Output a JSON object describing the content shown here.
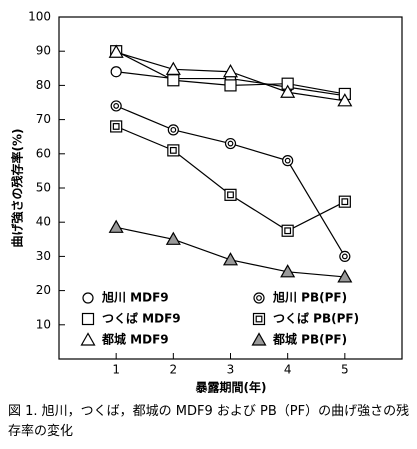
{
  "chart_data": {
    "type": "line",
    "y_label": "曲げ強さの残存率(%)",
    "x_label": "暴露期間(年)",
    "caption": "図 1. 旭川，つくば，都城の MDF9 および PB（PF）の曲げ強さの残存率の変化",
    "x": [
      1,
      2,
      3,
      4,
      5
    ],
    "xlim": [
      0,
      6
    ],
    "xticks": [
      1,
      2,
      3,
      4,
      5
    ],
    "ylim": [
      0,
      100
    ],
    "yticks": [
      10,
      20,
      30,
      40,
      50,
      60,
      70,
      80,
      90,
      100
    ],
    "legend": "bottom",
    "series": [
      {
        "name": "旭川 MDF9",
        "color": "#000000",
        "marker": "circle",
        "values": [
          84,
          82,
          82,
          79.5,
          77
        ]
      },
      {
        "name": "つくば MDF9",
        "color": "#000000",
        "marker": "square",
        "values": [
          90,
          81.5,
          80,
          80.5,
          77.5
        ]
      },
      {
        "name": "都城 MDF9",
        "color": "#000000",
        "marker": "triangle",
        "values": [
          89.7,
          84.7,
          84,
          78,
          75.5
        ]
      },
      {
        "name": "旭川 PB(PF)",
        "color": "#000000",
        "marker": "double-circle",
        "values": [
          74,
          67,
          63,
          58,
          30
        ]
      },
      {
        "name": "つくば PB(PF)",
        "color": "#000000",
        "marker": "double-square",
        "values": [
          68,
          61,
          48,
          37.5,
          46
        ]
      },
      {
        "name": "都城 PB(PF)",
        "color": "#000000",
        "marker": "shaded-triangle",
        "values": [
          38.5,
          35,
          29,
          25.5,
          24
        ]
      }
    ]
  }
}
